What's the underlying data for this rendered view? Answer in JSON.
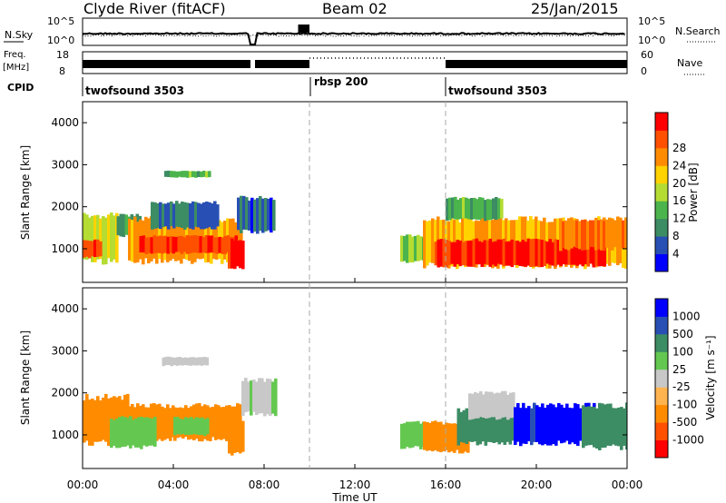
{
  "header": {
    "title": "Clyde River (fitACF)",
    "beam": "Beam 02",
    "date": "25/Jan/2015"
  },
  "noise_panel": {
    "left_label": "N.Sky",
    "right_label": "N.Search",
    "left_ticks": [
      "10^5",
      "10^0"
    ],
    "right_ticks": [
      "10^5",
      "10^0"
    ]
  },
  "freq_panel": {
    "left_label": "Freq.",
    "left_unit": "[MHz]",
    "left_ticks": [
      "18",
      "8"
    ],
    "right_label": "Nave",
    "right_ticks": [
      "60",
      "0"
    ]
  },
  "cpid": {
    "label": "CPID",
    "segments": [
      {
        "name": "twofsound 3503",
        "start_hour": 0,
        "end_hour": 10
      },
      {
        "name": "rbsp 200",
        "start_hour": 10,
        "end_hour": 16
      },
      {
        "name": "twofsound 3503",
        "start_hour": 16,
        "end_hour": 24
      }
    ]
  },
  "colors": {
    "power_scale": [
      "#0000ff",
      "#2850b4",
      "#3c8c64",
      "#4cb44c",
      "#b4dc32",
      "#ffd200",
      "#ff8c00",
      "#ff5000",
      "#ff0000"
    ],
    "velocity_scale": [
      "#ff0000",
      "#ff5000",
      "#ff8c00",
      "#ffb450",
      "#c8c8c8",
      "#64c850",
      "#3c8c64",
      "#2850b4",
      "#0000ff"
    ]
  },
  "chart_data": [
    {
      "type": "heatmap",
      "name": "power",
      "xlabel": "",
      "ylabel": "Slant Range [km]",
      "xlim": [
        0,
        24
      ],
      "ylim": [
        200,
        4500
      ],
      "yticks": [
        1000,
        2000,
        3000,
        4000
      ],
      "colorbar_label": "Power [dB]",
      "colorbar_ticks": [
        4,
        8,
        12,
        16,
        20,
        24,
        28
      ],
      "colorbar_range": [
        0,
        32
      ],
      "regions": [
        {
          "t0": 0.0,
          "t1": 1.5,
          "r0": 700,
          "r1": 1800,
          "value": 18
        },
        {
          "t0": 0.0,
          "t1": 0.8,
          "r0": 800,
          "r1": 1200,
          "value": 27
        },
        {
          "t0": 1.5,
          "t1": 2.5,
          "r0": 1300,
          "r1": 1800,
          "value": 9
        },
        {
          "t0": 2.0,
          "t1": 7.0,
          "r0": 700,
          "r1": 1700,
          "value": 22
        },
        {
          "t0": 2.5,
          "t1": 6.8,
          "r0": 900,
          "r1": 1300,
          "value": 28
        },
        {
          "t0": 6.4,
          "t1": 7.1,
          "r0": 550,
          "r1": 1200,
          "value": 30
        },
        {
          "t0": 3.0,
          "t1": 6.0,
          "r0": 1500,
          "r1": 2100,
          "value": 7
        },
        {
          "t0": 6.8,
          "t1": 8.4,
          "r0": 1400,
          "r1": 2200,
          "value": 6
        },
        {
          "t0": 3.6,
          "t1": 5.6,
          "r0": 2700,
          "r1": 2850,
          "value": 13
        },
        {
          "t0": 14.0,
          "t1": 15.0,
          "r0": 700,
          "r1": 1300,
          "value": 14
        },
        {
          "t0": 15.0,
          "t1": 24.0,
          "r0": 600,
          "r1": 1700,
          "value": 22
        },
        {
          "t0": 15.5,
          "t1": 23.0,
          "r0": 600,
          "r1": 1200,
          "value": 30
        },
        {
          "t0": 16.0,
          "t1": 18.5,
          "r0": 1700,
          "r1": 2200,
          "value": 12
        },
        {
          "t0": 21.0,
          "t1": 24.0,
          "r0": 1000,
          "r1": 1700,
          "value": 25
        }
      ]
    },
    {
      "type": "heatmap",
      "name": "velocity",
      "xlabel": "Time UT",
      "ylabel": "Slant Range [km]",
      "xlim": [
        0,
        24
      ],
      "ylim": [
        200,
        4500
      ],
      "xticks": [
        "00:00",
        "04:00",
        "08:00",
        "12:00",
        "16:00",
        "20:00",
        "00:00"
      ],
      "yticks": [
        1000,
        2000,
        3000,
        4000
      ],
      "colorbar_label": "Velocity [m s⁻¹]",
      "colorbar_ticks": [
        "1000",
        "500",
        "100",
        "25",
        "-25",
        "-100",
        "-500",
        "-1000"
      ],
      "regions": [
        {
          "t0": 0.0,
          "t1": 2.0,
          "r0": 800,
          "r1": 1900,
          "value": -300
        },
        {
          "t0": 2.0,
          "t1": 4.0,
          "r0": 900,
          "r1": 1700,
          "value": -200
        },
        {
          "t0": 1.2,
          "t1": 3.2,
          "r0": 700,
          "r1": 1400,
          "value": 60
        },
        {
          "t0": 4.0,
          "t1": 7.0,
          "r0": 900,
          "r1": 1700,
          "value": -250
        },
        {
          "t0": 4.0,
          "t1": 5.5,
          "r0": 1000,
          "r1": 1400,
          "value": 50
        },
        {
          "t0": 6.4,
          "t1": 7.1,
          "r0": 550,
          "r1": 1300,
          "value": -350
        },
        {
          "t0": 3.5,
          "t1": 5.5,
          "r0": 2650,
          "r1": 2850,
          "value": 0
        },
        {
          "t0": 7.0,
          "t1": 8.5,
          "r0": 1500,
          "r1": 2300,
          "value": 10
        },
        {
          "t0": 14.0,
          "t1": 15.0,
          "r0": 700,
          "r1": 1300,
          "value": 80
        },
        {
          "t0": 15.0,
          "t1": 17.0,
          "r0": 600,
          "r1": 1300,
          "value": -300
        },
        {
          "t0": 16.5,
          "t1": 19.0,
          "r0": 800,
          "r1": 1600,
          "value": 300
        },
        {
          "t0": 17.0,
          "t1": 19.0,
          "r0": 1400,
          "r1": 2000,
          "value": 0
        },
        {
          "t0": 19.0,
          "t1": 22.5,
          "r0": 800,
          "r1": 1700,
          "value": 1200
        },
        {
          "t0": 22.0,
          "t1": 24.0,
          "r0": 700,
          "r1": 1700,
          "value": 200
        }
      ]
    }
  ]
}
